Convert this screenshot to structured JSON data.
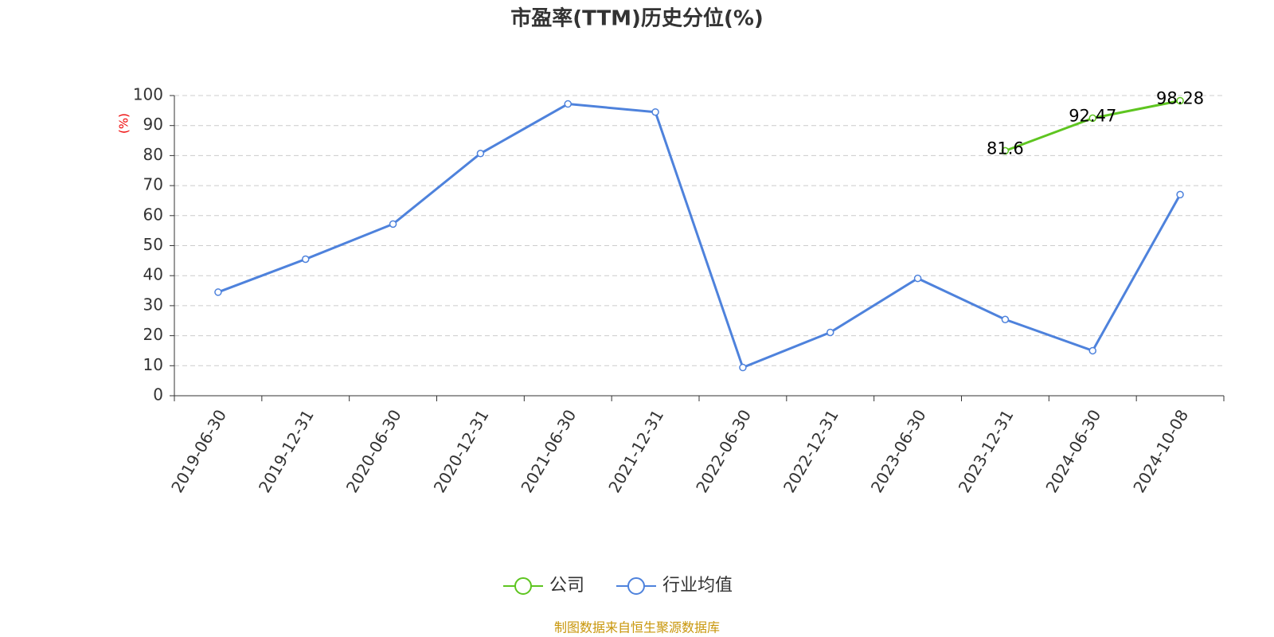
{
  "chart_data": {
    "type": "line",
    "title": "市盈率(TTM)历史分位(%)",
    "ylabel": "(%)",
    "source": "制图数据来自恒生聚源数据库",
    "categories": [
      "2019-06-30",
      "2019-12-31",
      "2020-06-30",
      "2020-12-31",
      "2021-06-30",
      "2021-12-31",
      "2022-06-30",
      "2022-12-31",
      "2023-06-30",
      "2023-12-31",
      "2024-06-30",
      "2024-10-08"
    ],
    "series": [
      {
        "name": "公司",
        "color": "#5ec520",
        "values": [
          null,
          null,
          null,
          null,
          null,
          null,
          null,
          null,
          null,
          81.6,
          92.47,
          98.28
        ],
        "show_labels": true
      },
      {
        "name": "行业均值",
        "color": "#4e82dc",
        "values": [
          34.5,
          45.5,
          57.2,
          80.7,
          97.2,
          94.5,
          9.4,
          21.1,
          39.1,
          25.4,
          15.0,
          67.0
        ],
        "show_labels": false
      }
    ],
    "ylim": [
      0,
      100
    ],
    "yticks": [
      0,
      10,
      20,
      30,
      40,
      50,
      60,
      70,
      80,
      90,
      100
    ],
    "grid": true,
    "legend": "bottom"
  }
}
